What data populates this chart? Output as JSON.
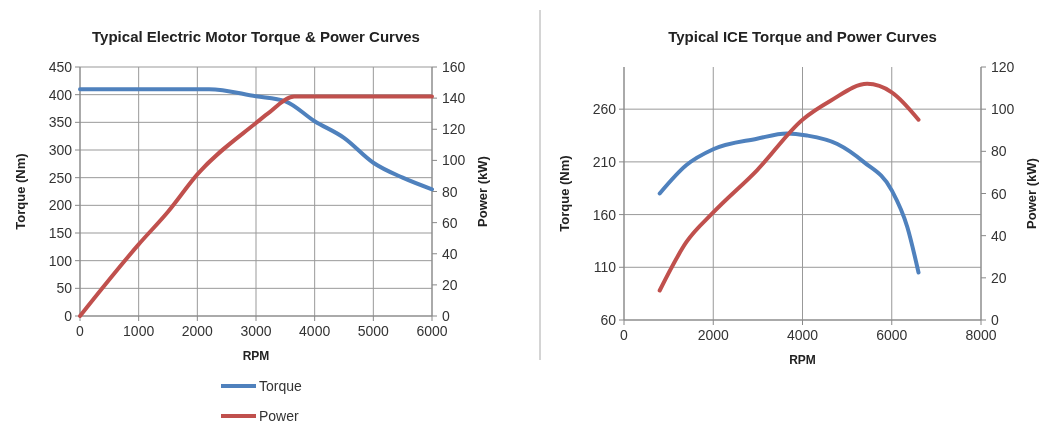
{
  "chart_data": [
    {
      "type": "line",
      "title": "Typical Electric Motor Torque & Power Curves",
      "xlabel": "RPM",
      "ylabel": "Torque (Nm)",
      "y2label": "Power (kW)",
      "xlim": [
        0,
        6000
      ],
      "xticks": [
        0,
        1000,
        2000,
        3000,
        4000,
        5000,
        6000
      ],
      "ylim": [
        0,
        450
      ],
      "yticks": [
        0,
        50,
        100,
        150,
        200,
        250,
        300,
        350,
        400,
        450
      ],
      "y2lim": [
        0,
        160
      ],
      "y2ticks": [
        0,
        20,
        40,
        60,
        80,
        100,
        120,
        140,
        160
      ],
      "grid": true,
      "legend": "bottom",
      "line_style": "solid",
      "marker": "none",
      "series": [
        {
          "name": "Torque",
          "color": "#4f81bd",
          "x": [
            0,
            2200,
            3000,
            3500,
            4000,
            4500,
            5000,
            5500,
            6000
          ],
          "values": [
            410,
            410,
            397,
            388,
            352,
            322,
            277,
            250,
            229
          ]
        },
        {
          "name": "Power",
          "color": "#c0504d",
          "axis": "y2",
          "x": [
            0,
            1000,
            1500,
            2000,
            3000,
            3200,
            3650,
            6000
          ],
          "values": [
            0,
            46,
            67,
            91,
            124,
            130,
            141,
            141
          ]
        }
      ]
    },
    {
      "type": "line",
      "title": "Typical ICE Torque and Power Curves",
      "xlabel": "RPM",
      "ylabel": "Torque (Nm)",
      "y2label": "Power (kW)",
      "xlim": [
        0,
        8000
      ],
      "xticks": [
        0,
        2000,
        4000,
        6000,
        8000
      ],
      "ylim": [
        60,
        300
      ],
      "yticks": [
        60,
        110,
        160,
        210,
        260
      ],
      "y2lim": [
        0,
        120
      ],
      "y2ticks": [
        0,
        20,
        40,
        60,
        80,
        100,
        120
      ],
      "grid": true,
      "legend": false,
      "line_style": "solid",
      "marker": "none",
      "series": [
        {
          "color": "#4f81bd",
          "x": [
            800,
            1400,
            2000,
            2980,
            3650,
            4100,
            4780,
            5370,
            6000,
            6350,
            6600
          ],
          "values": [
            180,
            207,
            222,
            232,
            237,
            235,
            227,
            210,
            183,
            148,
            105
          ]
        },
        {
          "color": "#c0504d",
          "axis": "y2",
          "x": [
            800,
            1400,
            2000,
            2980,
            4000,
            4630,
            5450,
            6000,
            6600
          ],
          "values": [
            14,
            37,
            51,
            71,
            95,
            104,
            112,
            108,
            95
          ]
        }
      ]
    }
  ]
}
